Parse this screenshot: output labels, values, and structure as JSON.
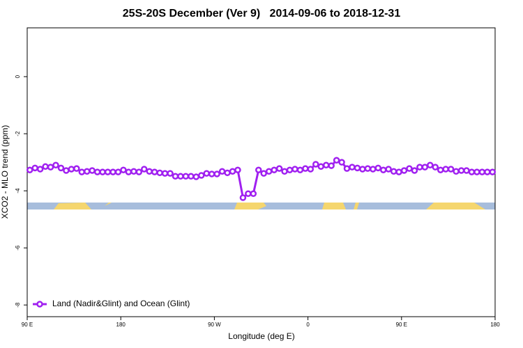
{
  "chart_data": {
    "type": "line",
    "title": "25S-20S December (Ver 9)   2014-09-06 to 2018-12-31",
    "x_label": "Longitude (deg E)",
    "y_label": "XCO2 - MLO trend (ppm)",
    "xlim": [
      90,
      540
    ],
    "xticks": [
      {
        "value": 90,
        "label": "90 E"
      },
      180,
      {
        "value": 270,
        "label": "90 W"
      },
      {
        "value": 360,
        "label": "0"
      },
      {
        "value": 450,
        "label": "90 E"
      },
      {
        "value": 540,
        "label": "180"
      }
    ],
    "ylim": [
      -8.41,
      1.71
    ],
    "yticks": [
      0,
      -2,
      -4,
      -6,
      -8
    ],
    "legend": "bottom-left",
    "x": [
      92.5,
      97.5,
      102.5,
      107.5,
      112.5,
      117.5,
      122.5,
      127.5,
      132.5,
      137.5,
      142.5,
      147.5,
      152.5,
      157.5,
      162.5,
      167.5,
      172.5,
      177.5,
      182.5,
      187.5,
      192.5,
      197.5,
      202.5,
      207.5,
      212.5,
      217.5,
      222.5,
      227.5,
      232.5,
      237.5,
      242.5,
      247.5,
      252.5,
      257.5,
      262.5,
      267.5,
      272.5,
      277.5,
      282.5,
      287.5,
      292.5,
      297.5,
      302.5,
      307.5,
      312.5,
      317.5,
      322.5,
      327.5,
      332.5,
      337.5,
      342.5,
      347.5,
      352.5,
      357.5,
      362.5,
      367.5,
      372.5,
      377.5,
      382.5,
      387.5,
      392.5,
      397.5,
      402.5,
      407.5,
      412.5,
      417.5,
      422.5,
      427.5,
      432.5,
      437.5,
      442.5,
      447.5,
      452.5,
      457.5,
      462.5,
      467.5,
      472.5,
      477.5,
      482.5,
      487.5,
      492.5,
      497.5,
      502.5,
      507.5,
      512.5,
      517.5,
      522.5,
      527.5,
      532.5,
      537.5
    ],
    "series": [
      {
        "name": "Land (Nadir&Glint) and Ocean (Glint)",
        "color": "#a020f0",
        "values": [
          -3.27,
          -3.2,
          -3.24,
          -3.15,
          -3.17,
          -3.1,
          -3.2,
          -3.29,
          -3.24,
          -3.22,
          -3.34,
          -3.32,
          -3.29,
          -3.34,
          -3.34,
          -3.34,
          -3.34,
          -3.34,
          -3.27,
          -3.34,
          -3.32,
          -3.34,
          -3.24,
          -3.32,
          -3.34,
          -3.37,
          -3.39,
          -3.39,
          -3.49,
          -3.49,
          -3.49,
          -3.49,
          -3.51,
          -3.46,
          -3.39,
          -3.41,
          -3.41,
          -3.32,
          -3.37,
          -3.32,
          -3.27,
          -4.24,
          -4.1,
          -4.1,
          -3.27,
          -3.39,
          -3.32,
          -3.27,
          -3.22,
          -3.32,
          -3.27,
          -3.24,
          -3.27,
          -3.22,
          -3.24,
          -3.07,
          -3.15,
          -3.1,
          -3.12,
          -2.93,
          -3.0,
          -3.22,
          -3.17,
          -3.2,
          -3.24,
          -3.22,
          -3.24,
          -3.2,
          -3.27,
          -3.24,
          -3.32,
          -3.34,
          -3.29,
          -3.22,
          -3.29,
          -3.17,
          -3.17,
          -3.1,
          -3.17,
          -3.27,
          -3.24,
          -3.24,
          -3.32,
          -3.29,
          -3.29,
          -3.34,
          -3.34,
          -3.34,
          -3.34,
          -3.34
        ]
      }
    ]
  }
}
